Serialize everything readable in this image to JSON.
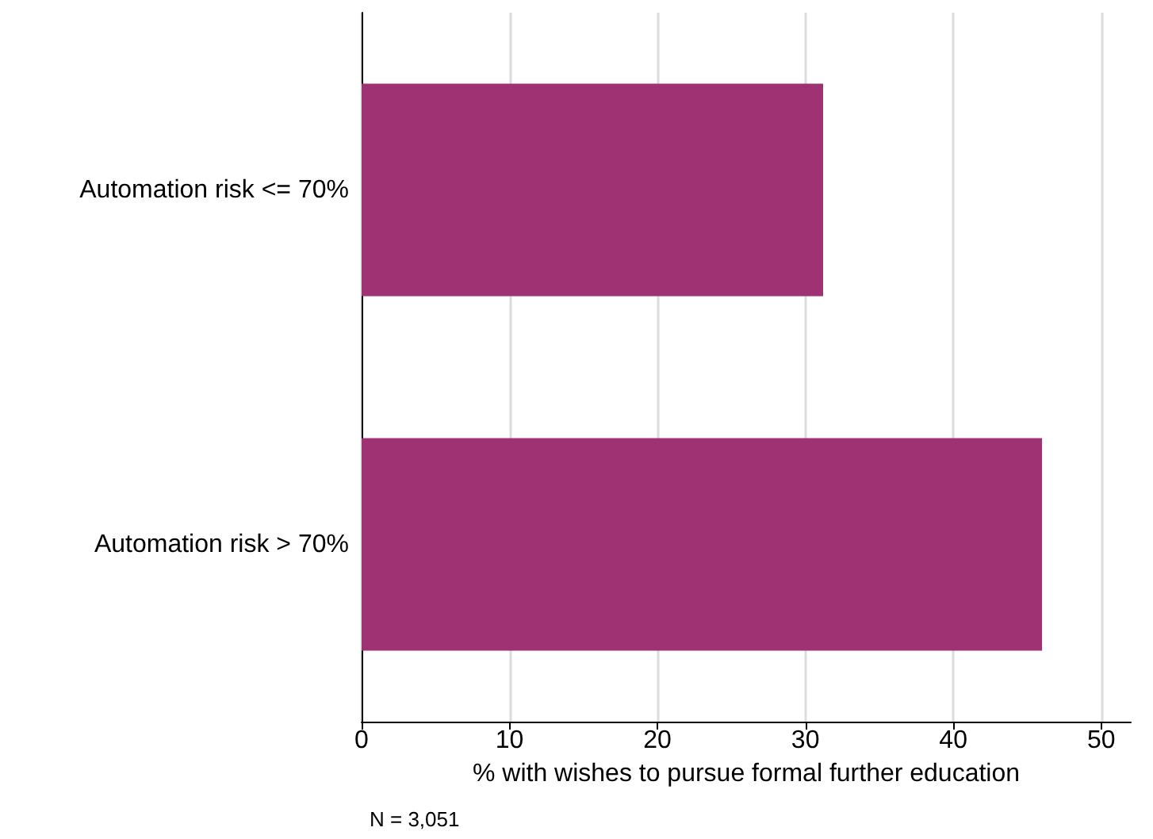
{
  "chart_data": {
    "type": "bar",
    "orientation": "horizontal",
    "xlabel": "% with wishes to pursue formal further education",
    "categories": [
      "Automation risk <= 70%",
      "Automation risk > 70%"
    ],
    "values": [
      31.2,
      46.0
    ],
    "color": "#9e3272",
    "xlim": [
      0,
      52
    ],
    "xticks": [
      0,
      10,
      20,
      30,
      40,
      50
    ],
    "grid": "x",
    "annotations": [
      "N = 3,051"
    ]
  }
}
